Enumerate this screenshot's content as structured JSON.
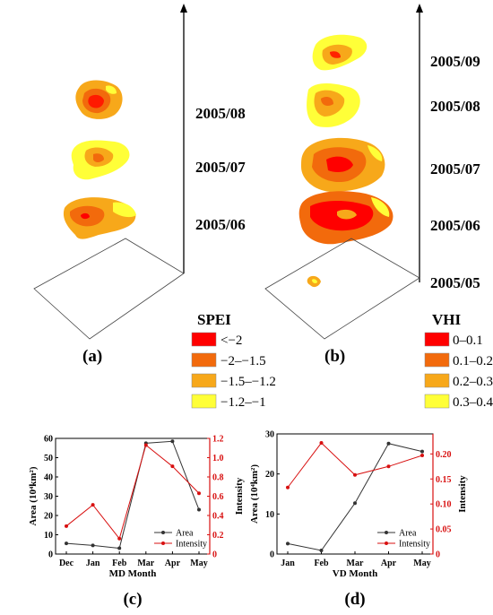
{
  "panel_a": {
    "label": "(a)",
    "dates": [
      "2005/08",
      "2005/07",
      "2005/06"
    ],
    "legend": {
      "title": "SPEI",
      "items": [
        {
          "label": "<−2",
          "color": "#ff0000"
        },
        {
          "label": "−2–−1.5",
          "color": "#f26a0c"
        },
        {
          "label": "−1.5–−1.2",
          "color": "#f7a81a"
        },
        {
          "label": "−1.2–−1",
          "color": "#ffff38"
        }
      ]
    }
  },
  "panel_b": {
    "label": "(b)",
    "dates": [
      "2005/09",
      "2005/08",
      "2005/07",
      "2005/06",
      "2005/05"
    ],
    "legend": {
      "title": "VHI",
      "items": [
        {
          "label": "0–0.1",
          "color": "#ff0000"
        },
        {
          "label": "0.1–0.2",
          "color": "#f26a0c"
        },
        {
          "label": "0.2–0.3",
          "color": "#f7a81a"
        },
        {
          "label": "0.3–0.4",
          "color": "#ffff38"
        }
      ]
    }
  },
  "chart_data": [
    {
      "type": "line",
      "label": "(c)",
      "categories": [
        "Dec",
        "Jan",
        "Feb",
        "Mar",
        "Apr",
        "May"
      ],
      "xlabel": "MD Month",
      "ylabel": "Area (10⁴km²)",
      "y2label": "Intensity",
      "ylim": [
        0,
        60
      ],
      "yticks": [
        0,
        10,
        20,
        30,
        40,
        50,
        60
      ],
      "y2lim": [
        0,
        1.2
      ],
      "y2ticks": [
        "0",
        "0.2",
        "0.4",
        "0.6",
        "0.8",
        "1.0",
        "1.2"
      ],
      "y2values": [
        0,
        0.2,
        0.4,
        0.6,
        0.8,
        1.0,
        1.2
      ],
      "series": [
        {
          "name": "Area",
          "axis": "left",
          "color": "#333333",
          "values": [
            5.5,
            4.5,
            3,
            57.5,
            58.5,
            23
          ]
        },
        {
          "name": "Intensity",
          "axis": "right",
          "color": "#d81010",
          "values": [
            0.29,
            0.51,
            0.16,
            1.13,
            0.91,
            0.63
          ]
        }
      ],
      "legend_position": "bottom-right"
    },
    {
      "type": "line",
      "label": "(d)",
      "categories": [
        "Jan",
        "Feb",
        "Mar",
        "Apr",
        "May"
      ],
      "xlabel": "VD Month",
      "ylabel": "Area (10⁴km²)",
      "y2label": "Intensity",
      "ylim": [
        0,
        30
      ],
      "yticks": [
        0,
        10,
        20,
        30
      ],
      "y2lim": [
        0,
        0.24
      ],
      "y2ticks": [
        "0",
        "0.05",
        "0.10",
        "0.15",
        "0.20"
      ],
      "y2values": [
        0,
        0.05,
        0.1,
        0.15,
        0.2
      ],
      "series": [
        {
          "name": "Area",
          "axis": "left",
          "color": "#333333",
          "values": [
            2.6,
            0.9,
            12.7,
            27.6,
            25.6
          ]
        },
        {
          "name": "Intensity",
          "axis": "right",
          "color": "#d81010",
          "values": [
            0.133,
            0.222,
            0.158,
            0.175,
            0.197
          ]
        }
      ],
      "legend_position": "bottom-right"
    }
  ]
}
